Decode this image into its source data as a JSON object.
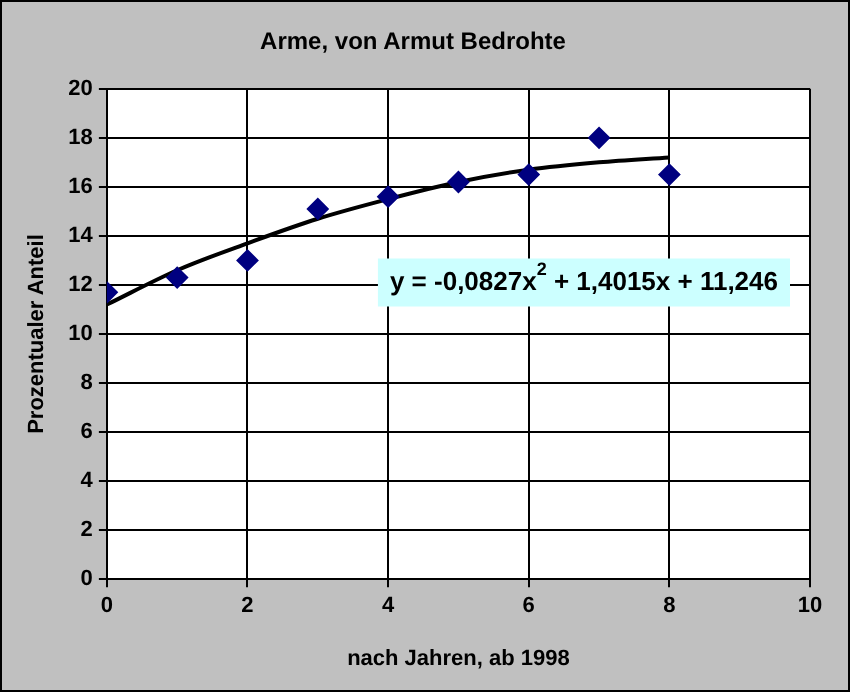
{
  "chart_data": {
    "type": "scatter",
    "title": "Arme, von Armut Bedrohte",
    "xlabel": "nach Jahren, ab 1998",
    "ylabel": "Prozentualer Anteil",
    "series": [
      {
        "color": "#000080",
        "marker": "diamond",
        "x": [
          0,
          1,
          2,
          3,
          4,
          5,
          6,
          7,
          8
        ],
        "values": [
          11.7,
          12.3,
          13.0,
          15.1,
          15.6,
          16.2,
          16.5,
          18.0,
          16.5
        ]
      },
      {
        "type": "line",
        "color": "#000000",
        "marker": "none",
        "x": [
          0,
          1,
          2,
          3,
          4,
          5,
          6,
          7,
          8
        ],
        "values": [
          11.2,
          12.6,
          13.7,
          14.7,
          15.5,
          16.2,
          16.7,
          17.0,
          17.2
        ]
      }
    ],
    "annotations": [
      "y = -0,0827x$^{2}$ + 1,4015x + 11,246"
    ],
    "xlim": [
      0,
      10
    ],
    "xticks": [
      0,
      2,
      4,
      6,
      8,
      10
    ],
    "ylim": [
      0,
      20
    ],
    "yticks": [
      0,
      2,
      4,
      6,
      8,
      10,
      12,
      14,
      16,
      18,
      20
    ],
    "grid": true,
    "legend": false
  }
}
